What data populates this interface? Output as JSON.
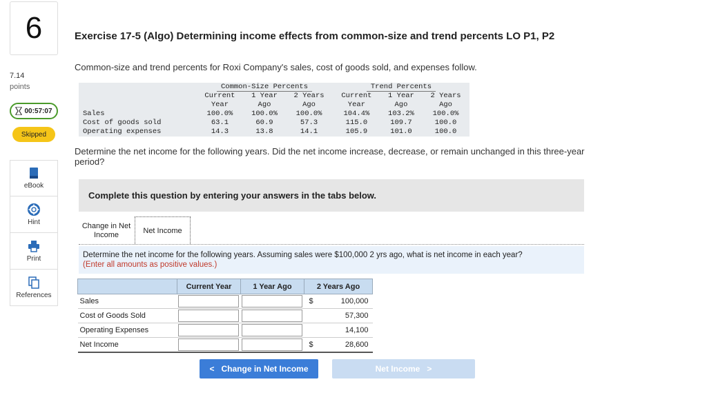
{
  "question": {
    "number": "6",
    "points_value": "7.14",
    "points_label": "points",
    "timer": "00:57:07",
    "status": "Skipped"
  },
  "tools": [
    {
      "label": "eBook"
    },
    {
      "label": "Hint"
    },
    {
      "label": "Print"
    },
    {
      "label": "References"
    }
  ],
  "title": "Exercise 17-5 (Algo) Determining income effects from common-size and trend percents LO P1, P2",
  "intro": "Common-size and trend percents for Roxi Company's sales, cost of goods sold, and expenses follow.",
  "data_table": {
    "group_common": "Common-Size Percents",
    "group_trend": "Trend Percents",
    "col1": [
      "Current",
      "1 Year",
      "2 Years",
      "Current",
      "1 Year",
      "2 Years"
    ],
    "col2": [
      "Year",
      "Ago",
      "Ago",
      "Year",
      "Ago",
      "Ago"
    ],
    "rows": [
      {
        "label": "Sales",
        "values": [
          "100.0%",
          "100.0%",
          "100.0%",
          "104.4%",
          "103.2%",
          "100.0%"
        ]
      },
      {
        "label": "Cost of goods sold",
        "values": [
          "63.1",
          "60.9",
          "57.3",
          "115.0",
          "109.7",
          "100.0"
        ]
      },
      {
        "label": "Operating expenses",
        "values": [
          "14.3",
          "13.8",
          "14.1",
          "105.9",
          "101.0",
          "100.0"
        ]
      }
    ]
  },
  "prompt": "Determine the net income for the following years. Did the net income increase, decrease, or remain unchanged in this three-year period?",
  "panel_heading": "Complete this question by entering your answers in the tabs below.",
  "tabs": {
    "tab1_line1": "Change in Net",
    "tab1_line2": "Income",
    "tab2": "Net Income"
  },
  "instructions": {
    "main": "Determine the net income for the following years. Assuming sales were $100,000 2 yrs ago, what is net income in each year?",
    "note": "(Enter all amounts as positive values.)"
  },
  "answer_table": {
    "headers": [
      "",
      "Current Year",
      "1 Year Ago",
      "2 Years Ago"
    ],
    "rows": [
      {
        "label": "Sales",
        "dollar": "$",
        "value": "100,000"
      },
      {
        "label": "Cost of Goods Sold",
        "dollar": "",
        "value": "57,300"
      },
      {
        "label": "Operating Expenses",
        "dollar": "",
        "value": "14,100"
      },
      {
        "label": "Net Income",
        "dollar": "$",
        "value": "28,600"
      }
    ]
  },
  "nav": {
    "prev_label": "Change in Net Income",
    "next_label": "Net Income",
    "prev_arrow": "<",
    "next_arrow": ">"
  }
}
